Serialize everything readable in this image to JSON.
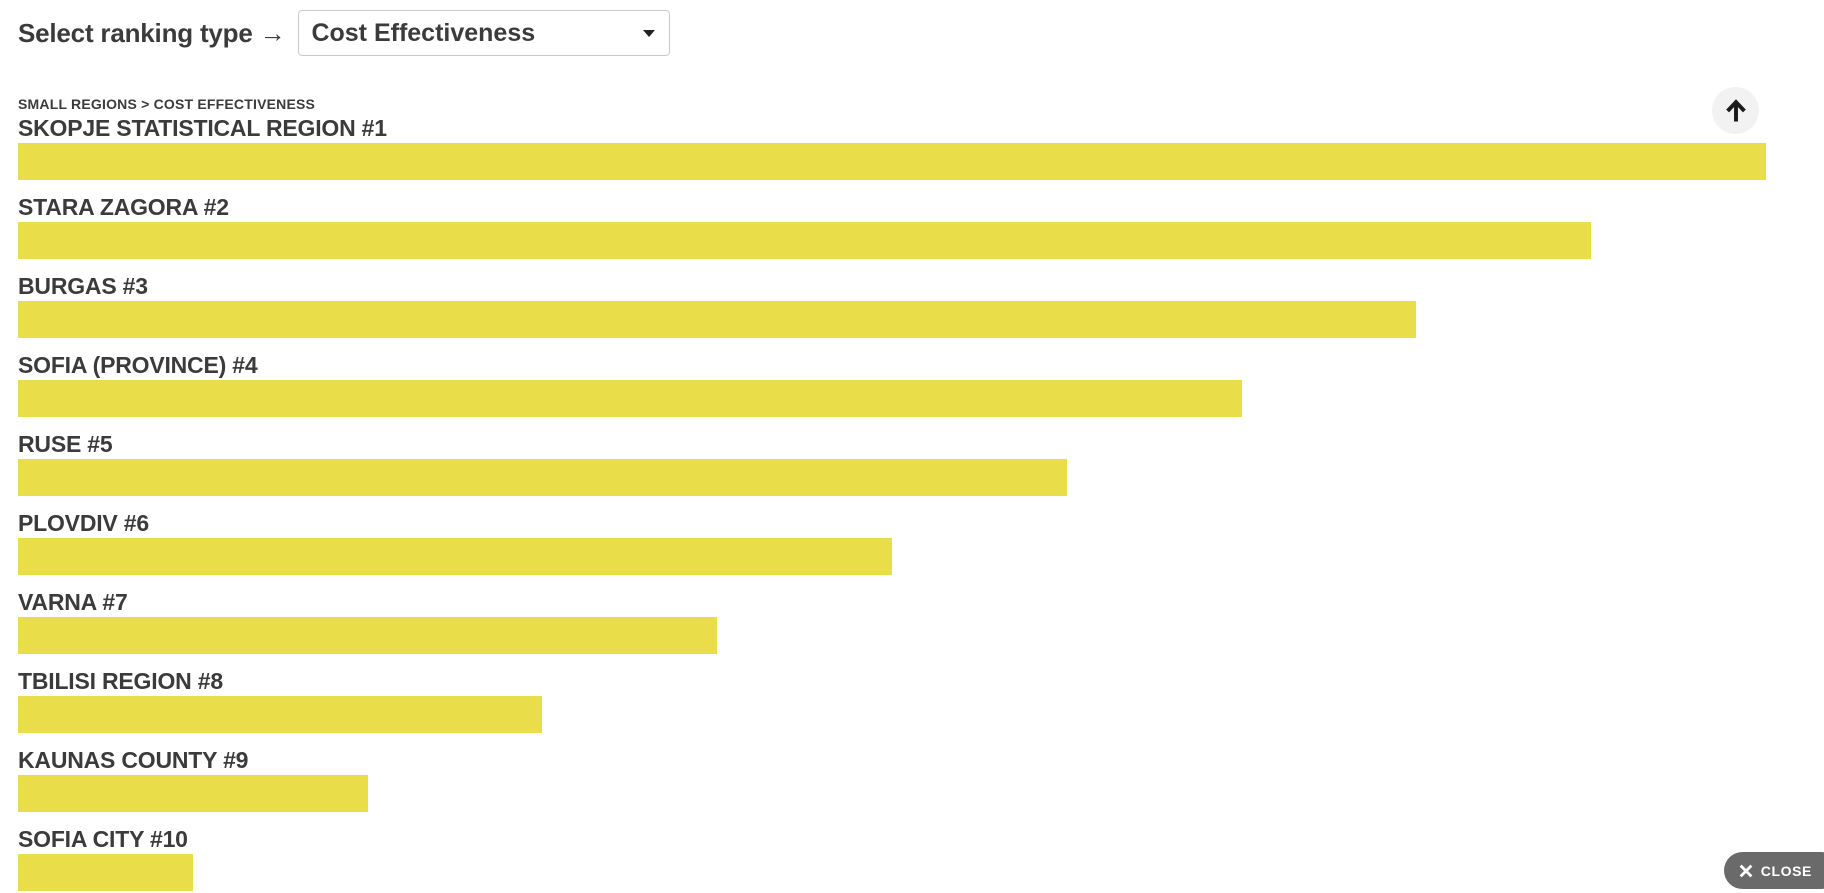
{
  "header": {
    "ranking_label": "Select ranking type →",
    "ranking_select": {
      "value": "Cost Effectiveness"
    }
  },
  "breadcrumb": "SMALL REGIONS > COST EFFECTIVENESS",
  "chart_data": {
    "type": "bar",
    "orientation": "horizontal",
    "title": "SMALL REGIONS > COST EFFECTIVENESS",
    "categories": [
      "SKOPJE STATISTICAL REGION #1",
      "STARA ZAGORA #2",
      "BURGAS #3",
      "SOFIA (PROVINCE) #4",
      "RUSE #5",
      "PLOVDIV #6",
      "VARNA #7",
      "TBILISI REGION #8",
      "KAUNAS COUNTY #9",
      "SOFIA CITY #10"
    ],
    "ranks": [
      1,
      2,
      3,
      4,
      5,
      6,
      7,
      8,
      9,
      10
    ],
    "values": [
      100,
      90,
      80,
      70,
      60,
      50,
      40,
      30,
      20,
      10
    ],
    "value_meaning": "bar width as percent of widest bar; no numeric axis, gridlines or data labels shown",
    "bar_color": "#e9de4a",
    "legend": "none",
    "grid": false
  },
  "buttons": {
    "scroll_to_top": {
      "icon": "arrow-up"
    },
    "close": {
      "label": "CLOSE",
      "icon": "x"
    }
  },
  "colors": {
    "bar": "#e9de4a",
    "text": "#3b3b3b",
    "select_border": "#c9c9c9",
    "scroll_button_background": "#f2f2f2",
    "close_background": "#6a6a6a",
    "close_text": "#ffffff"
  }
}
